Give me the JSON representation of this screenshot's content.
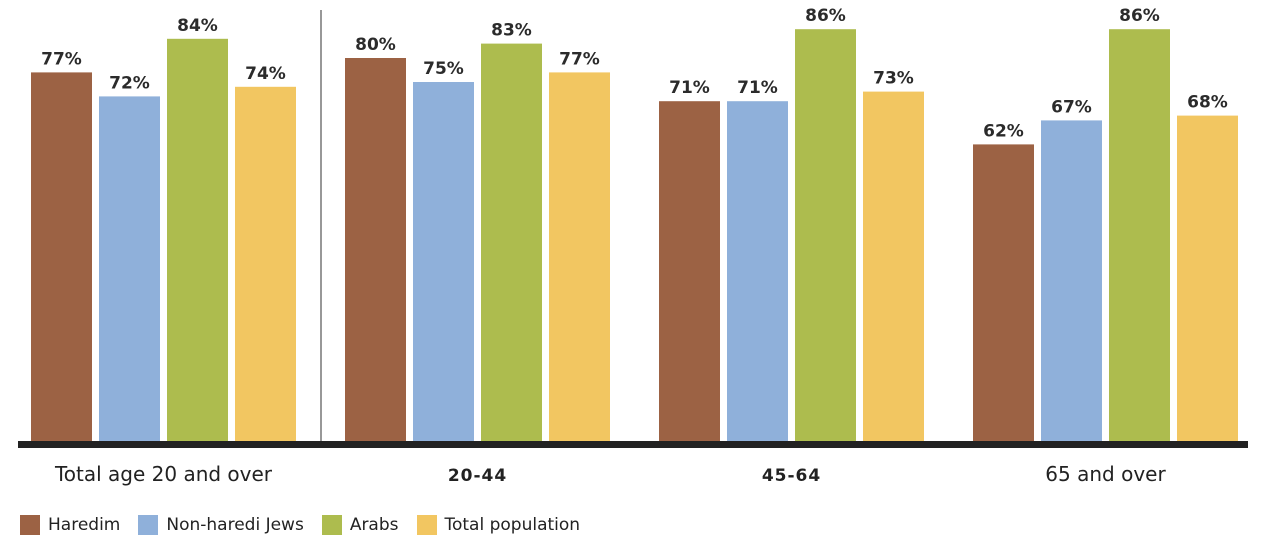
{
  "chart_data": {
    "type": "bar",
    "categories": [
      "Total age 20 and over",
      "20-44",
      "45-64",
      "65 and over"
    ],
    "series": [
      {
        "name": "Haredim",
        "color": "#9c6244",
        "values": [
          77,
          80,
          71,
          62
        ]
      },
      {
        "name": "Non-haredi Jews",
        "color": "#8fb0da",
        "values": [
          72,
          75,
          71,
          67
        ]
      },
      {
        "name": "Arabs",
        "color": "#adbc4e",
        "values": [
          84,
          83,
          86,
          86
        ]
      },
      {
        "name": "Total population",
        "color": "#f2c661",
        "values": [
          74,
          77,
          73,
          68
        ]
      }
    ],
    "value_labels": [
      [
        "77%",
        "80%",
        "71%",
        "62%"
      ],
      [
        "72%",
        "75%",
        "71%",
        "67%"
      ],
      [
        "84%",
        "83%",
        "86%",
        "86%"
      ],
      [
        "74%",
        "77%",
        "73%",
        "68%"
      ]
    ],
    "legend_position": "bottom-left",
    "value_axis_shown": false,
    "grid": false
  }
}
